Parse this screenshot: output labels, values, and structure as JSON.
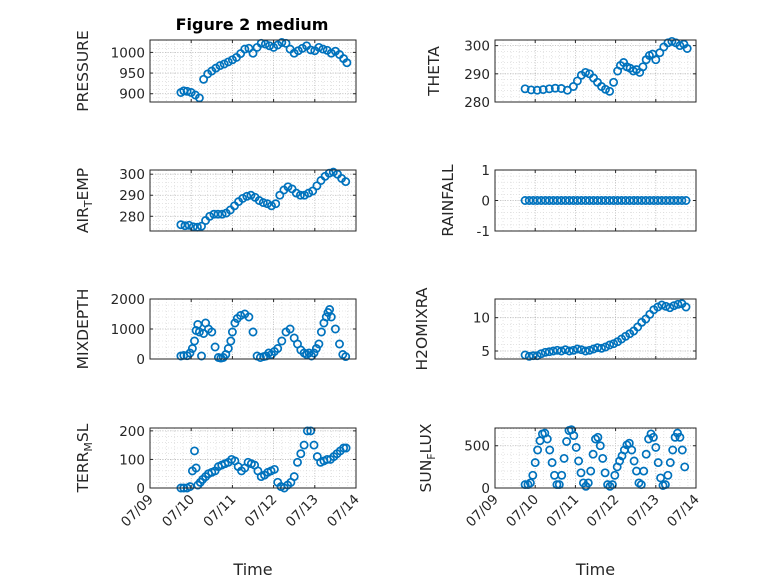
{
  "figure": {
    "title": "Figure 2 medium"
  },
  "colors": {
    "marker": "#0072BD",
    "axes": "#262626",
    "grid": "#d4d4d4"
  },
  "chart_data": [
    {
      "id": "pressure",
      "type": "scatter",
      "title": "Figure 2 medium",
      "xlabel": "",
      "ylabel": "PRESSURE",
      "ylim": [
        880,
        1030
      ],
      "yticks": [
        900,
        950,
        1000
      ],
      "ytick_labels": [
        "900",
        "950",
        "1000"
      ],
      "xlim": [
        0,
        5
      ],
      "xticks": [
        0,
        1,
        2,
        3,
        4,
        5
      ],
      "x": [
        0.75,
        0.82,
        0.9,
        1.0,
        1.1,
        1.2,
        1.3,
        1.4,
        1.5,
        1.6,
        1.7,
        1.8,
        1.9,
        2.0,
        2.1,
        2.2,
        2.3,
        2.4,
        2.5,
        2.6,
        2.7,
        2.8,
        2.9,
        3.0,
        3.1,
        3.2,
        3.3,
        3.4,
        3.5,
        3.6,
        3.7,
        3.8,
        3.9,
        4.0,
        4.1,
        4.2,
        4.3,
        4.4,
        4.5,
        4.6,
        4.7,
        4.78
      ],
      "y": [
        903,
        907,
        906,
        903,
        897,
        890,
        935,
        948,
        955,
        962,
        968,
        972,
        977,
        982,
        988,
        997,
        1008,
        1010,
        998,
        1012,
        1022,
        1020,
        1016,
        1012,
        1018,
        1024,
        1022,
        1008,
        998,
        1004,
        1010,
        1016,
        1006,
        1004,
        1012,
        1008,
        1005,
        998,
        1003,
        995,
        985,
        975
      ]
    },
    {
      "id": "theta",
      "type": "scatter",
      "xlabel": "",
      "ylabel": "THETA",
      "ylim": [
        280,
        302
      ],
      "yticks": [
        280,
        290,
        300
      ],
      "ytick_labels": [
        "280",
        "290",
        "300"
      ],
      "xlim": [
        0,
        5
      ],
      "xticks": [
        0,
        1,
        2,
        3,
        4,
        5
      ],
      "x": [
        0.75,
        0.9,
        1.05,
        1.2,
        1.35,
        1.5,
        1.65,
        1.8,
        1.95,
        2.05,
        2.15,
        2.25,
        2.35,
        2.45,
        2.55,
        2.65,
        2.75,
        2.85,
        2.95,
        3.05,
        3.12,
        3.2,
        3.28,
        3.36,
        3.44,
        3.52,
        3.6,
        3.68,
        3.76,
        3.84,
        3.92,
        4.0,
        4.1,
        4.2,
        4.3,
        4.4,
        4.5,
        4.6,
        4.7,
        4.78
      ],
      "y": [
        284.7,
        284.3,
        284.2,
        284.4,
        284.7,
        284.9,
        284.8,
        284.2,
        285.5,
        287.5,
        289.5,
        290.5,
        290.0,
        288.5,
        287.0,
        285.5,
        284.5,
        283.8,
        287.0,
        291.0,
        293.0,
        294.0,
        292.5,
        292.0,
        291.0,
        291.5,
        290.5,
        292.5,
        295.0,
        296.5,
        297.0,
        295.0,
        297.5,
        299.5,
        301.0,
        301.5,
        301.0,
        300.0,
        300.5,
        299.0
      ]
    },
    {
      "id": "airtemp",
      "type": "scatter",
      "xlabel": "",
      "ylabel": "AIR",
      "ylabel_sub": "T",
      "ylabel_rest": "EMP",
      "ylim": [
        273,
        302
      ],
      "yticks": [
        280,
        290,
        300
      ],
      "ytick_labels": [
        "280",
        "290",
        "300"
      ],
      "xlim": [
        0,
        5
      ],
      "xticks": [
        0,
        1,
        2,
        3,
        4,
        5
      ],
      "x": [
        0.75,
        0.85,
        0.95,
        1.05,
        1.15,
        1.25,
        1.35,
        1.45,
        1.55,
        1.65,
        1.75,
        1.85,
        1.95,
        2.05,
        2.15,
        2.25,
        2.35,
        2.45,
        2.55,
        2.65,
        2.75,
        2.85,
        2.95,
        3.05,
        3.15,
        3.25,
        3.35,
        3.45,
        3.55,
        3.65,
        3.75,
        3.85,
        3.95,
        4.05,
        4.15,
        4.25,
        4.35,
        4.45,
        4.55,
        4.65,
        4.75
      ],
      "y": [
        276.0,
        275.5,
        275.7,
        275.0,
        274.8,
        275.3,
        278.0,
        280.0,
        281.0,
        281.0,
        281.0,
        281.5,
        283.0,
        285.0,
        287.0,
        288.5,
        289.5,
        290.0,
        289.0,
        287.5,
        286.5,
        286.0,
        285.0,
        286.0,
        290.0,
        292.5,
        294.0,
        293.0,
        291.0,
        290.0,
        290.0,
        291.0,
        292.0,
        294.5,
        297.0,
        299.0,
        300.5,
        301.0,
        300.0,
        298.0,
        296.5
      ]
    },
    {
      "id": "rainfall",
      "type": "scatter",
      "xlabel": "",
      "ylabel": "RAINFALL",
      "ylim": [
        -1,
        1
      ],
      "yticks": [
        -1,
        0,
        1
      ],
      "ytick_labels": [
        "-1",
        "0",
        "1"
      ],
      "xlim": [
        0,
        5
      ],
      "xticks": [
        0,
        1,
        2,
        3,
        4,
        5
      ],
      "x": [
        0.75,
        0.85,
        0.95,
        1.05,
        1.15,
        1.25,
        1.35,
        1.45,
        1.55,
        1.65,
        1.75,
        1.85,
        1.95,
        2.05,
        2.15,
        2.25,
        2.35,
        2.45,
        2.55,
        2.65,
        2.75,
        2.85,
        2.95,
        3.05,
        3.15,
        3.25,
        3.35,
        3.45,
        3.55,
        3.65,
        3.75,
        3.85,
        3.95,
        4.05,
        4.15,
        4.25,
        4.35,
        4.45,
        4.55,
        4.65,
        4.75
      ],
      "y": [
        0,
        0,
        0,
        0,
        0,
        0,
        0,
        0,
        0,
        0,
        0,
        0,
        0,
        0,
        0,
        0,
        0,
        0,
        0,
        0,
        0,
        0,
        0,
        0,
        0,
        0,
        0,
        0,
        0,
        0,
        0,
        0,
        0,
        0,
        0,
        0,
        0,
        0,
        0,
        0,
        0
      ]
    },
    {
      "id": "mixdepth",
      "type": "scatter",
      "xlabel": "",
      "ylabel": "MIXDEPTH",
      "ylim": [
        0,
        2000
      ],
      "yticks": [
        0,
        1000,
        2000
      ],
      "ytick_labels": [
        "0",
        "1000",
        "2000"
      ],
      "xlim": [
        0,
        5
      ],
      "xticks": [
        0,
        1,
        2,
        3,
        4,
        5
      ],
      "x": [
        0.75,
        0.82,
        0.9,
        0.97,
        1.03,
        1.08,
        1.12,
        1.16,
        1.2,
        1.25,
        1.3,
        1.35,
        1.42,
        1.5,
        1.58,
        1.66,
        1.72,
        1.78,
        1.84,
        1.9,
        1.96,
        2.0,
        2.06,
        2.12,
        2.2,
        2.3,
        2.4,
        2.5,
        2.6,
        2.68,
        2.76,
        2.82,
        2.88,
        2.95,
        3.02,
        3.1,
        3.2,
        3.3,
        3.4,
        3.5,
        3.58,
        3.66,
        3.74,
        3.8,
        3.86,
        3.92,
        3.98,
        4.04,
        4.1,
        4.16,
        4.22,
        4.28,
        4.32,
        4.36,
        4.4,
        4.5,
        4.6,
        4.68,
        4.75
      ],
      "y": [
        100,
        120,
        110,
        200,
        350,
        600,
        950,
        1150,
        900,
        100,
        850,
        1200,
        1000,
        900,
        400,
        50,
        30,
        50,
        150,
        350,
        600,
        900,
        1200,
        1350,
        1450,
        1500,
        1400,
        900,
        100,
        50,
        80,
        100,
        200,
        150,
        250,
        350,
        600,
        900,
        1000,
        700,
        500,
        300,
        200,
        150,
        200,
        100,
        200,
        350,
        500,
        900,
        1200,
        1400,
        1550,
        1650,
        1400,
        1000,
        500,
        150,
        80
      ]
    },
    {
      "id": "h2omixra",
      "type": "scatter",
      "xlabel": "",
      "ylabel": "H2OMIXRA",
      "ylim": [
        3.8,
        12.8
      ],
      "yticks": [
        5,
        10
      ],
      "ytick_labels": [
        "5",
        "10"
      ],
      "xlim": [
        0,
        5
      ],
      "xticks": [
        0,
        1,
        2,
        3,
        4,
        5
      ],
      "x": [
        0.75,
        0.85,
        0.95,
        1.05,
        1.15,
        1.25,
        1.35,
        1.45,
        1.55,
        1.65,
        1.75,
        1.85,
        1.95,
        2.05,
        2.15,
        2.25,
        2.35,
        2.45,
        2.55,
        2.65,
        2.75,
        2.85,
        2.95,
        3.05,
        3.15,
        3.25,
        3.35,
        3.45,
        3.55,
        3.65,
        3.75,
        3.85,
        3.95,
        4.05,
        4.15,
        4.25,
        4.35,
        4.45,
        4.55,
        4.65,
        4.75
      ],
      "y": [
        4.4,
        4.2,
        4.3,
        4.3,
        4.6,
        4.8,
        4.9,
        5.0,
        5.1,
        5.0,
        5.2,
        5.0,
        5.1,
        5.3,
        5.2,
        5.0,
        5.1,
        5.3,
        5.5,
        5.4,
        5.6,
        5.9,
        6.1,
        6.4,
        6.8,
        7.2,
        7.6,
        8.0,
        8.6,
        9.3,
        9.8,
        10.5,
        11.2,
        11.6,
        11.9,
        11.7,
        11.5,
        11.8,
        12.0,
        12.1,
        11.6
      ]
    },
    {
      "id": "terrmsl",
      "type": "scatter",
      "xlabel": "Time",
      "ylabel": "TERR",
      "ylabel_sub": "M",
      "ylabel_rest": "SL",
      "ylim": [
        0,
        210
      ],
      "yticks": [
        0,
        100,
        200
      ],
      "ytick_labels": [
        "0",
        "100",
        "200"
      ],
      "xlim": [
        0,
        5
      ],
      "xticks": [
        0,
        1,
        2,
        3,
        4,
        5
      ],
      "xtick_labels": [
        "07/09",
        "07/10",
        "07/11",
        "07/12",
        "07/13",
        "07/14"
      ],
      "x": [
        0.75,
        0.82,
        0.9,
        0.97,
        1.03,
        1.08,
        1.12,
        1.16,
        1.22,
        1.28,
        1.35,
        1.42,
        1.5,
        1.58,
        1.66,
        1.74,
        1.82,
        1.9,
        1.98,
        2.06,
        2.14,
        2.22,
        2.3,
        2.38,
        2.46,
        2.54,
        2.62,
        2.7,
        2.78,
        2.86,
        2.94,
        3.02,
        3.1,
        3.18,
        3.26,
        3.34,
        3.42,
        3.5,
        3.58,
        3.66,
        3.74,
        3.82,
        3.9,
        3.98,
        4.06,
        4.14,
        4.22,
        4.3,
        4.38,
        4.46,
        4.54,
        4.62,
        4.7,
        4.76
      ],
      "y": [
        0,
        0,
        0,
        5,
        60,
        130,
        70,
        10,
        20,
        30,
        40,
        50,
        55,
        60,
        75,
        80,
        85,
        90,
        100,
        95,
        75,
        60,
        70,
        90,
        85,
        80,
        60,
        40,
        45,
        55,
        60,
        65,
        20,
        5,
        0,
        10,
        20,
        40,
        90,
        120,
        150,
        200,
        200,
        150,
        110,
        90,
        95,
        100,
        100,
        110,
        120,
        130,
        140,
        140
      ]
    },
    {
      "id": "sunflux",
      "type": "scatter",
      "xlabel": "Time",
      "ylabel": "SUN",
      "ylabel_sub": "F",
      "ylabel_rest": "LUX",
      "ylim": [
        0,
        710
      ],
      "yticks": [
        0,
        500
      ],
      "ytick_labels": [
        "0",
        "500"
      ],
      "xlim": [
        0,
        5
      ],
      "xticks": [
        0,
        1,
        2,
        3,
        4,
        5
      ],
      "xtick_labels": [
        "07/09",
        "07/10",
        "07/11",
        "07/12",
        "07/13",
        "07/14"
      ],
      "x": [
        0.75,
        0.82,
        0.88,
        0.94,
        1.0,
        1.06,
        1.12,
        1.18,
        1.24,
        1.3,
        1.36,
        1.42,
        1.48,
        1.54,
        1.6,
        1.66,
        1.72,
        1.78,
        1.84,
        1.9,
        1.96,
        2.02,
        2.08,
        2.14,
        2.2,
        2.26,
        2.32,
        2.38,
        2.44,
        2.5,
        2.56,
        2.62,
        2.68,
        2.74,
        2.8,
        2.86,
        2.92,
        2.98,
        3.04,
        3.1,
        3.16,
        3.22,
        3.28,
        3.34,
        3.4,
        3.46,
        3.52,
        3.58,
        3.64,
        3.7,
        3.76,
        3.82,
        3.88,
        3.94,
        4.0,
        4.06,
        4.12,
        4.18,
        4.24,
        4.3,
        4.36,
        4.42,
        4.48,
        4.54,
        4.6,
        4.66,
        4.72
      ],
      "y": [
        40,
        40,
        60,
        150,
        300,
        450,
        560,
        640,
        650,
        580,
        450,
        300,
        150,
        40,
        40,
        150,
        350,
        550,
        680,
        690,
        620,
        480,
        320,
        180,
        60,
        20,
        60,
        200,
        400,
        580,
        600,
        500,
        350,
        180,
        40,
        20,
        40,
        150,
        250,
        320,
        380,
        450,
        510,
        530,
        450,
        320,
        200,
        60,
        40,
        200,
        400,
        580,
        640,
        600,
        480,
        300,
        120,
        30,
        40,
        150,
        300,
        450,
        600,
        650,
        600,
        450,
        250
      ]
    }
  ]
}
